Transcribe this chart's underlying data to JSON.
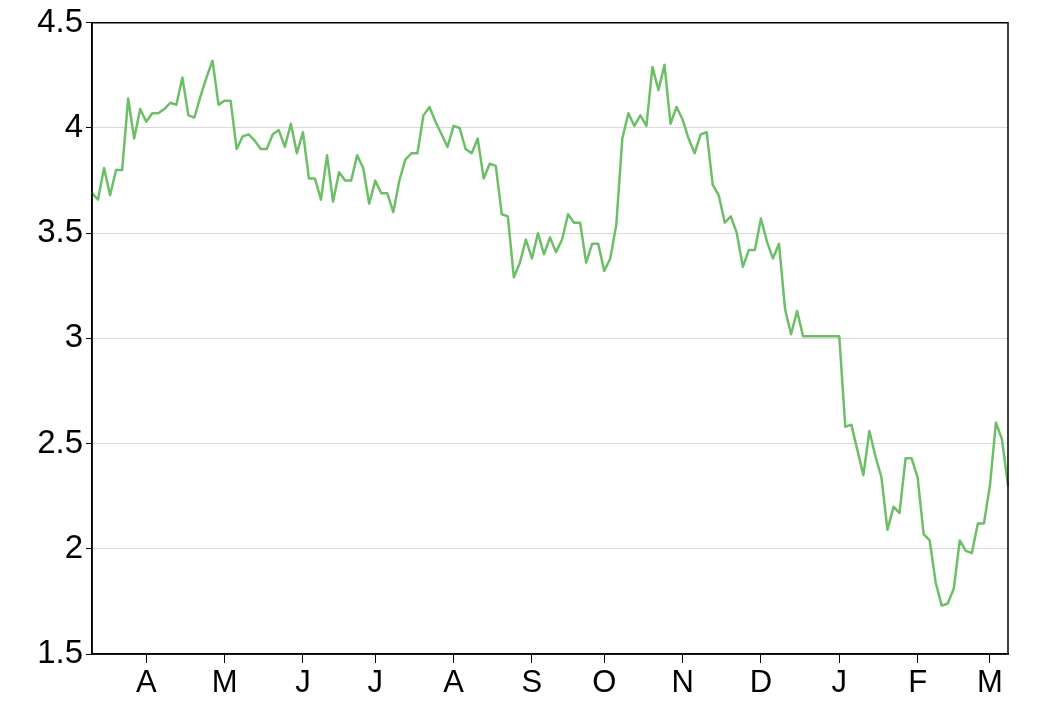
{
  "chart_data": {
    "type": "line",
    "grid": "y",
    "legend": false,
    "marker": "none",
    "line_style": "solid",
    "categories": [
      null,
      null,
      null,
      null,
      null,
      null,
      null,
      null,
      null,
      "A",
      null,
      null,
      null,
      null,
      null,
      null,
      null,
      null,
      null,
      null,
      null,
      null,
      "M",
      null,
      null,
      null,
      null,
      null,
      null,
      null,
      null,
      null,
      null,
      null,
      null,
      "J",
      null,
      null,
      null,
      null,
      null,
      null,
      null,
      null,
      null,
      null,
      null,
      "J",
      null,
      null,
      null,
      null,
      null,
      null,
      null,
      null,
      null,
      null,
      null,
      null,
      "A",
      null,
      null,
      null,
      null,
      null,
      null,
      null,
      null,
      null,
      null,
      null,
      null,
      "S",
      null,
      null,
      null,
      null,
      null,
      null,
      null,
      null,
      null,
      null,
      null,
      "O",
      null,
      null,
      null,
      null,
      null,
      null,
      null,
      null,
      null,
      null,
      null,
      null,
      "N",
      null,
      null,
      null,
      null,
      null,
      null,
      null,
      null,
      null,
      null,
      null,
      null,
      "D",
      null,
      null,
      null,
      null,
      null,
      null,
      null,
      null,
      null,
      null,
      null,
      null,
      "J",
      null,
      null,
      null,
      null,
      null,
      null,
      null,
      null,
      null,
      null,
      null,
      null,
      "F",
      null,
      null,
      null,
      null,
      null,
      null,
      null,
      null,
      null,
      null,
      null,
      "M",
      null,
      null,
      null
    ],
    "ylim": [
      1.5,
      4.5
    ],
    "yticks": [
      1.5,
      2,
      2.5,
      3,
      3.5,
      4,
      4.5
    ],
    "series": [
      {
        "color": "#6dbf67",
        "values": [
          3.69,
          3.66,
          3.81,
          3.68,
          3.8,
          3.8,
          4.14,
          3.95,
          4.09,
          4.03,
          4.07,
          4.07,
          4.09,
          4.12,
          4.11,
          4.24,
          4.06,
          4.05,
          4.15,
          4.24,
          4.32,
          4.11,
          4.13,
          4.13,
          3.9,
          3.96,
          3.97,
          3.94,
          3.9,
          3.9,
          3.97,
          3.99,
          3.91,
          4.02,
          3.88,
          3.98,
          3.76,
          3.76,
          3.66,
          3.87,
          3.65,
          3.79,
          3.75,
          3.75,
          3.87,
          3.81,
          3.64,
          3.75,
          3.69,
          3.69,
          3.6,
          3.75,
          3.85,
          3.88,
          3.88,
          4.06,
          4.1,
          4.03,
          3.97,
          3.91,
          4.01,
          4.0,
          3.9,
          3.88,
          3.95,
          3.76,
          3.83,
          3.82,
          3.59,
          3.58,
          3.29,
          3.36,
          3.47,
          3.38,
          3.5,
          3.4,
          3.48,
          3.41,
          3.47,
          3.59,
          3.55,
          3.55,
          3.36,
          3.45,
          3.45,
          3.32,
          3.38,
          3.54,
          3.95,
          4.07,
          4.01,
          4.06,
          4.01,
          4.29,
          4.18,
          4.3,
          4.02,
          4.1,
          4.04,
          3.95,
          3.88,
          3.97,
          3.98,
          3.73,
          3.68,
          3.55,
          3.58,
          3.5,
          3.34,
          3.42,
          3.42,
          3.57,
          3.46,
          3.38,
          3.45,
          3.14,
          3.02,
          3.13,
          3.01,
          3.01,
          3.01,
          3.01,
          3.01,
          3.01,
          3.01,
          2.58,
          2.59,
          2.47,
          2.35,
          2.56,
          2.44,
          2.34,
          2.09,
          2.2,
          2.17,
          2.43,
          2.43,
          2.34,
          2.07,
          2.04,
          1.84,
          1.73,
          1.74,
          1.81,
          2.04,
          1.99,
          1.98,
          2.12,
          2.12,
          2.3,
          2.6,
          2.52,
          2.3
        ]
      }
    ]
  }
}
